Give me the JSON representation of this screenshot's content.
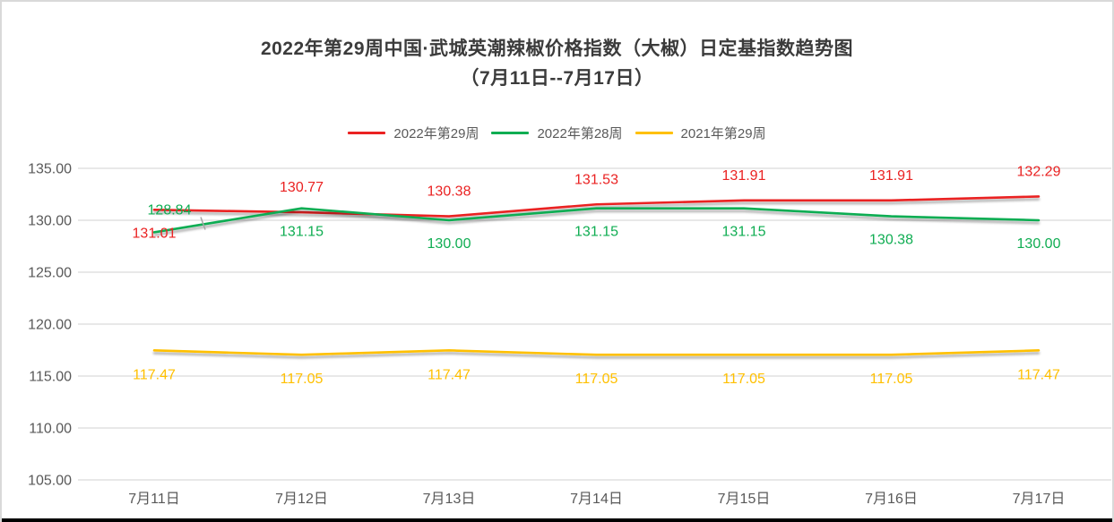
{
  "title": {
    "line1": "2022年第29周中国·武城英潮辣椒价格指数（大椒）日定基指数趋势图",
    "line2": "（7月11日--7月17日）"
  },
  "chart_data": {
    "type": "line",
    "categories": [
      "7月11日",
      "7月12日",
      "7月13日",
      "7月14日",
      "7月15日",
      "7月16日",
      "7月17日"
    ],
    "series": [
      {
        "name": "2022年第29周",
        "color": "#ea2222",
        "values": [
          131.01,
          130.77,
          130.38,
          131.53,
          131.91,
          131.91,
          132.29
        ],
        "label_placement": [
          "below",
          "above",
          "above",
          "above",
          "above",
          "above",
          "above"
        ]
      },
      {
        "name": "2022年第28周",
        "color": "#0fad52",
        "values": [
          128.84,
          131.15,
          130.0,
          131.15,
          131.15,
          130.38,
          130.0
        ],
        "label_placement": [
          "above-leader",
          "below",
          "below",
          "below",
          "below",
          "below",
          "below"
        ]
      },
      {
        "name": "2021年第29周",
        "color": "#ffc000",
        "values": [
          117.47,
          117.05,
          117.47,
          117.05,
          117.05,
          117.05,
          117.47
        ],
        "label_placement": [
          "below",
          "below",
          "below",
          "below",
          "below",
          "below",
          "below"
        ]
      }
    ],
    "title": "2022年第29周中国·武城英潮辣椒价格指数（大椒）日定基指数趋势图（7月11日--7月17日）",
    "xlabel": "",
    "ylabel": "",
    "ylim": [
      105,
      135
    ],
    "ytick_step": 5,
    "ytick_labels": [
      "135.00",
      "130.00",
      "125.00",
      "120.00",
      "115.00",
      "110.00",
      "105.00"
    ],
    "grid": true,
    "legend_position": "top",
    "data_label_format": "0.00"
  },
  "colors": {
    "grid": "#d9d9d9",
    "axis_text": "#595959",
    "title_text": "#3b3b3b",
    "frame_border": "#d9d9d9",
    "bottom_bar": "#000000",
    "leader_line": "#a6a6a6"
  }
}
